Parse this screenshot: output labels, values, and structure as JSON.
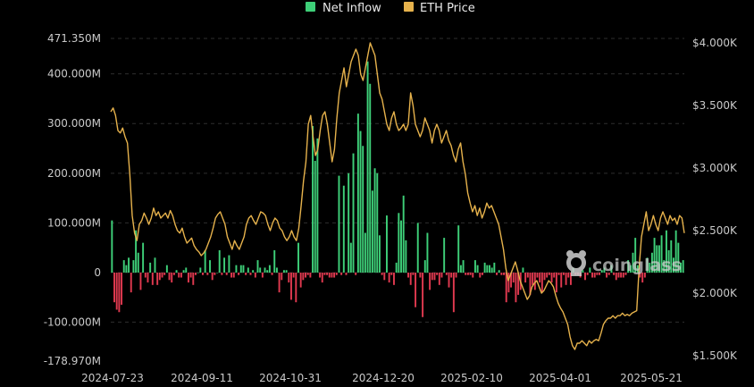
{
  "legend": {
    "items": [
      {
        "label": "Net Inflow",
        "color": "#3ecf78"
      },
      {
        "label": "ETH Price",
        "color": "#e6b24c"
      }
    ]
  },
  "watermark": "coinglass",
  "colors": {
    "positive": "#3ecf78",
    "negative": "#e0394f",
    "price": "#e6b24c"
  },
  "chart_data": {
    "type": "bar",
    "title": "",
    "x_labels": [
      "2024-07-23",
      "2024-09-11",
      "2024-10-31",
      "2024-12-20",
      "2025-02-10",
      "2025-04-01",
      "2025-05-21"
    ],
    "left_axis": {
      "ticks": [
        "471.350M",
        "400.000M",
        "300.000M",
        "200.000M",
        "100.000M",
        "0",
        "-100.000M",
        "-178.970M"
      ],
      "range": [
        -178.97,
        471.35
      ],
      "unit": "M"
    },
    "right_axis": {
      "ticks": [
        "$4.000K",
        "$3.500K",
        "$3.000K",
        "$2.500K",
        "$2.000K",
        "$1.500K"
      ],
      "range": [
        1.45,
        4.05
      ],
      "unit": "K"
    },
    "grid": true,
    "legend_position": "top-center",
    "series": [
      {
        "name": "Net Inflow",
        "type": "bar",
        "values": [
          105,
          -60,
          -75,
          -80,
          -65,
          25,
          15,
          30,
          -40,
          25,
          85,
          40,
          -35,
          60,
          -10,
          -20,
          20,
          -25,
          30,
          -25,
          -15,
          -10,
          -5,
          15,
          -15,
          -20,
          -5,
          5,
          -10,
          -10,
          5,
          10,
          -20,
          -10,
          -25,
          -5,
          0,
          10,
          -5,
          45,
          -5,
          25,
          -15,
          -5,
          0,
          45,
          -5,
          30,
          -5,
          35,
          -10,
          -10,
          15,
          -5,
          15,
          15,
          -5,
          10,
          -5,
          5,
          -10,
          25,
          10,
          -10,
          10,
          5,
          15,
          -5,
          45,
          10,
          -40,
          -15,
          5,
          5,
          -20,
          -55,
          -10,
          -60,
          60,
          -30,
          -15,
          -10,
          -5,
          -10,
          295,
          225,
          270,
          -10,
          -20,
          -5,
          -5,
          -10,
          -10,
          -10,
          -5,
          195,
          -5,
          175,
          -5,
          200,
          60,
          240,
          -5,
          320,
          285,
          255,
          80,
          425,
          380,
          165,
          210,
          200,
          75,
          -5,
          -15,
          115,
          -20,
          -5,
          -25,
          20,
          120,
          105,
          155,
          65,
          -10,
          -25,
          -5,
          -70,
          100,
          -10,
          -90,
          25,
          80,
          -35,
          -15,
          -15,
          -5,
          -25,
          -10,
          70,
          -5,
          -30,
          -10,
          -80,
          -10,
          95,
          15,
          25,
          -5,
          -5,
          -5,
          -10,
          25,
          15,
          -10,
          -5,
          20,
          15,
          15,
          10,
          20,
          -5,
          5,
          -5,
          -5,
          -60,
          -40,
          -30,
          -20,
          -60,
          -45,
          -35,
          10,
          -20,
          -10,
          -45,
          -25,
          -35,
          -10,
          -20,
          -40,
          -15,
          -10,
          -5,
          -20,
          -10,
          -40,
          -5,
          -30,
          -5,
          -25,
          -10,
          -25,
          10,
          -5,
          -5,
          -10,
          5,
          -15,
          -5,
          10,
          -10,
          -10,
          -5,
          -5,
          5,
          10,
          -10,
          -5,
          15,
          -5,
          -15,
          -10,
          -10,
          -10,
          -5,
          25,
          15,
          40,
          70,
          15,
          -10,
          -20,
          -10,
          30,
          20,
          40,
          70,
          55,
          55,
          75,
          25,
          85,
          45,
          65,
          30,
          85,
          60,
          20,
          25
        ]
      },
      {
        "name": "ETH Price",
        "type": "line",
        "values": [
          3.45,
          3.48,
          3.42,
          3.3,
          3.28,
          3.32,
          3.25,
          3.2,
          2.95,
          2.62,
          2.48,
          2.42,
          2.55,
          2.58,
          2.64,
          2.6,
          2.55,
          2.6,
          2.68,
          2.62,
          2.65,
          2.6,
          2.62,
          2.64,
          2.6,
          2.66,
          2.62,
          2.55,
          2.5,
          2.48,
          2.52,
          2.45,
          2.4,
          2.42,
          2.44,
          2.38,
          2.35,
          2.33,
          2.3,
          2.32,
          2.35,
          2.4,
          2.45,
          2.52,
          2.6,
          2.63,
          2.65,
          2.6,
          2.55,
          2.45,
          2.4,
          2.35,
          2.42,
          2.38,
          2.35,
          2.4,
          2.45,
          2.55,
          2.6,
          2.62,
          2.58,
          2.55,
          2.6,
          2.65,
          2.64,
          2.62,
          2.55,
          2.5,
          2.56,
          2.6,
          2.58,
          2.52,
          2.5,
          2.45,
          2.42,
          2.45,
          2.5,
          2.45,
          2.42,
          2.52,
          2.7,
          2.9,
          3.05,
          3.35,
          3.42,
          3.25,
          3.1,
          3.15,
          3.3,
          3.42,
          3.45,
          3.35,
          3.2,
          3.05,
          3.15,
          3.4,
          3.6,
          3.7,
          3.8,
          3.65,
          3.75,
          3.85,
          3.9,
          3.95,
          3.9,
          3.75,
          3.7,
          3.8,
          3.9,
          4.0,
          3.95,
          3.9,
          3.75,
          3.6,
          3.55,
          3.45,
          3.35,
          3.3,
          3.4,
          3.45,
          3.35,
          3.3,
          3.32,
          3.35,
          3.3,
          3.35,
          3.6,
          3.5,
          3.35,
          3.3,
          3.25,
          3.3,
          3.4,
          3.35,
          3.3,
          3.2,
          3.3,
          3.35,
          3.3,
          3.2,
          3.25,
          3.3,
          3.22,
          3.18,
          3.1,
          3.05,
          3.15,
          3.2,
          3.05,
          2.95,
          2.8,
          2.72,
          2.65,
          2.7,
          2.62,
          2.68,
          2.6,
          2.65,
          2.72,
          2.68,
          2.7,
          2.65,
          2.6,
          2.55,
          2.45,
          2.35,
          2.2,
          2.1,
          2.15,
          2.2,
          2.25,
          2.18,
          2.1,
          2.05,
          2.0,
          1.95,
          1.98,
          2.05,
          2.08,
          2.1,
          2.05,
          2.0,
          2.02,
          2.06,
          2.1,
          2.08,
          2.05,
          1.98,
          1.92,
          1.88,
          1.85,
          1.8,
          1.75,
          1.65,
          1.58,
          1.55,
          1.6,
          1.6,
          1.62,
          1.6,
          1.58,
          1.62,
          1.6,
          1.62,
          1.63,
          1.62,
          1.68,
          1.75,
          1.78,
          1.8,
          1.8,
          1.82,
          1.8,
          1.82,
          1.82,
          1.84,
          1.82,
          1.83,
          1.82,
          1.84,
          1.85,
          1.86,
          2.2,
          2.45,
          2.55,
          2.65,
          2.5,
          2.55,
          2.62,
          2.55,
          2.5,
          2.6,
          2.65,
          2.6,
          2.55,
          2.62,
          2.58,
          2.6,
          2.55,
          2.62,
          2.6,
          2.48
        ]
      }
    ]
  }
}
